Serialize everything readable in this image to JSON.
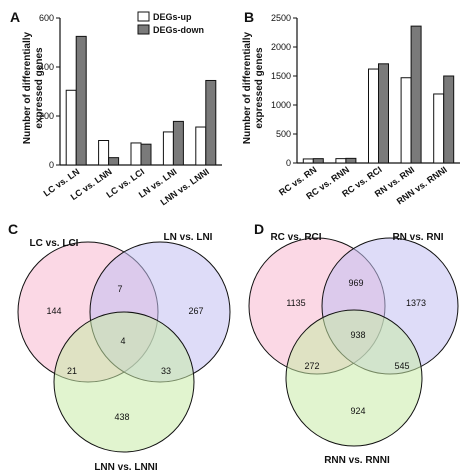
{
  "panels": {
    "A": "A",
    "B": "B",
    "C": "C",
    "D": "D"
  },
  "colors": {
    "up_fill": "#ffffff",
    "down_fill": "#7a7a7a",
    "bar_stroke": "#111111",
    "axis": "#111111",
    "venn_pink": "#f7b8d0",
    "venn_blue": "#c2c0f2",
    "venn_green": "#c8eba8"
  },
  "chart_data": [
    {
      "type": "bar",
      "panel": "A",
      "ylabel": "Number of differentially expressed genes",
      "ylabel_lines": [
        "Number of differentially",
        "expressed genes"
      ],
      "ylim": [
        0,
        600
      ],
      "yticks": [
        0,
        200,
        400,
        600
      ],
      "categories": [
        "LC vs. LN",
        "LC vs. LNN",
        "LC vs. LCI",
        "LN vs. LNI",
        "LNN vs. LNNI"
      ],
      "legend_position": "top-right",
      "series": [
        {
          "name": "DEGs-up",
          "values": [
            305,
            100,
            90,
            135,
            155
          ]
        },
        {
          "name": "DEGs-down",
          "values": [
            525,
            30,
            85,
            178,
            345
          ]
        }
      ]
    },
    {
      "type": "bar",
      "panel": "B",
      "ylabel": "Number of differentially expressed genes",
      "ylabel_lines": [
        "Number of differentially",
        "expressed genes"
      ],
      "ylim": [
        0,
        2500
      ],
      "yticks": [
        0,
        500,
        1000,
        1500,
        2000,
        2500
      ],
      "categories": [
        "RC vs. RN",
        "RC vs. RNN",
        "RC vs. RCI",
        "RN vs. RNI",
        "RNN vs. RNNI"
      ],
      "series": [
        {
          "name": "DEGs-up",
          "values": [
            70,
            75,
            1620,
            1470,
            1190
          ]
        },
        {
          "name": "DEGs-down",
          "values": [
            75,
            80,
            1710,
            2360,
            1500
          ]
        }
      ]
    },
    {
      "type": "venn",
      "panel": "C",
      "sets": [
        "LC vs. LCI",
        "LN vs. LNI",
        "LNN vs. LNNI"
      ],
      "regions": {
        "a_only": 144,
        "b_only": 267,
        "c_only": 438,
        "ab": 7,
        "ac": 21,
        "bc": 33,
        "abc": 4
      }
    },
    {
      "type": "venn",
      "panel": "D",
      "sets": [
        "RC vs. RCI",
        "RN vs. RNI",
        "RNN vs. RNNI"
      ],
      "regions": {
        "a_only": 1135,
        "b_only": 1373,
        "c_only": 924,
        "ab": 969,
        "ac": 272,
        "bc": 545,
        "abc": 938
      }
    }
  ]
}
